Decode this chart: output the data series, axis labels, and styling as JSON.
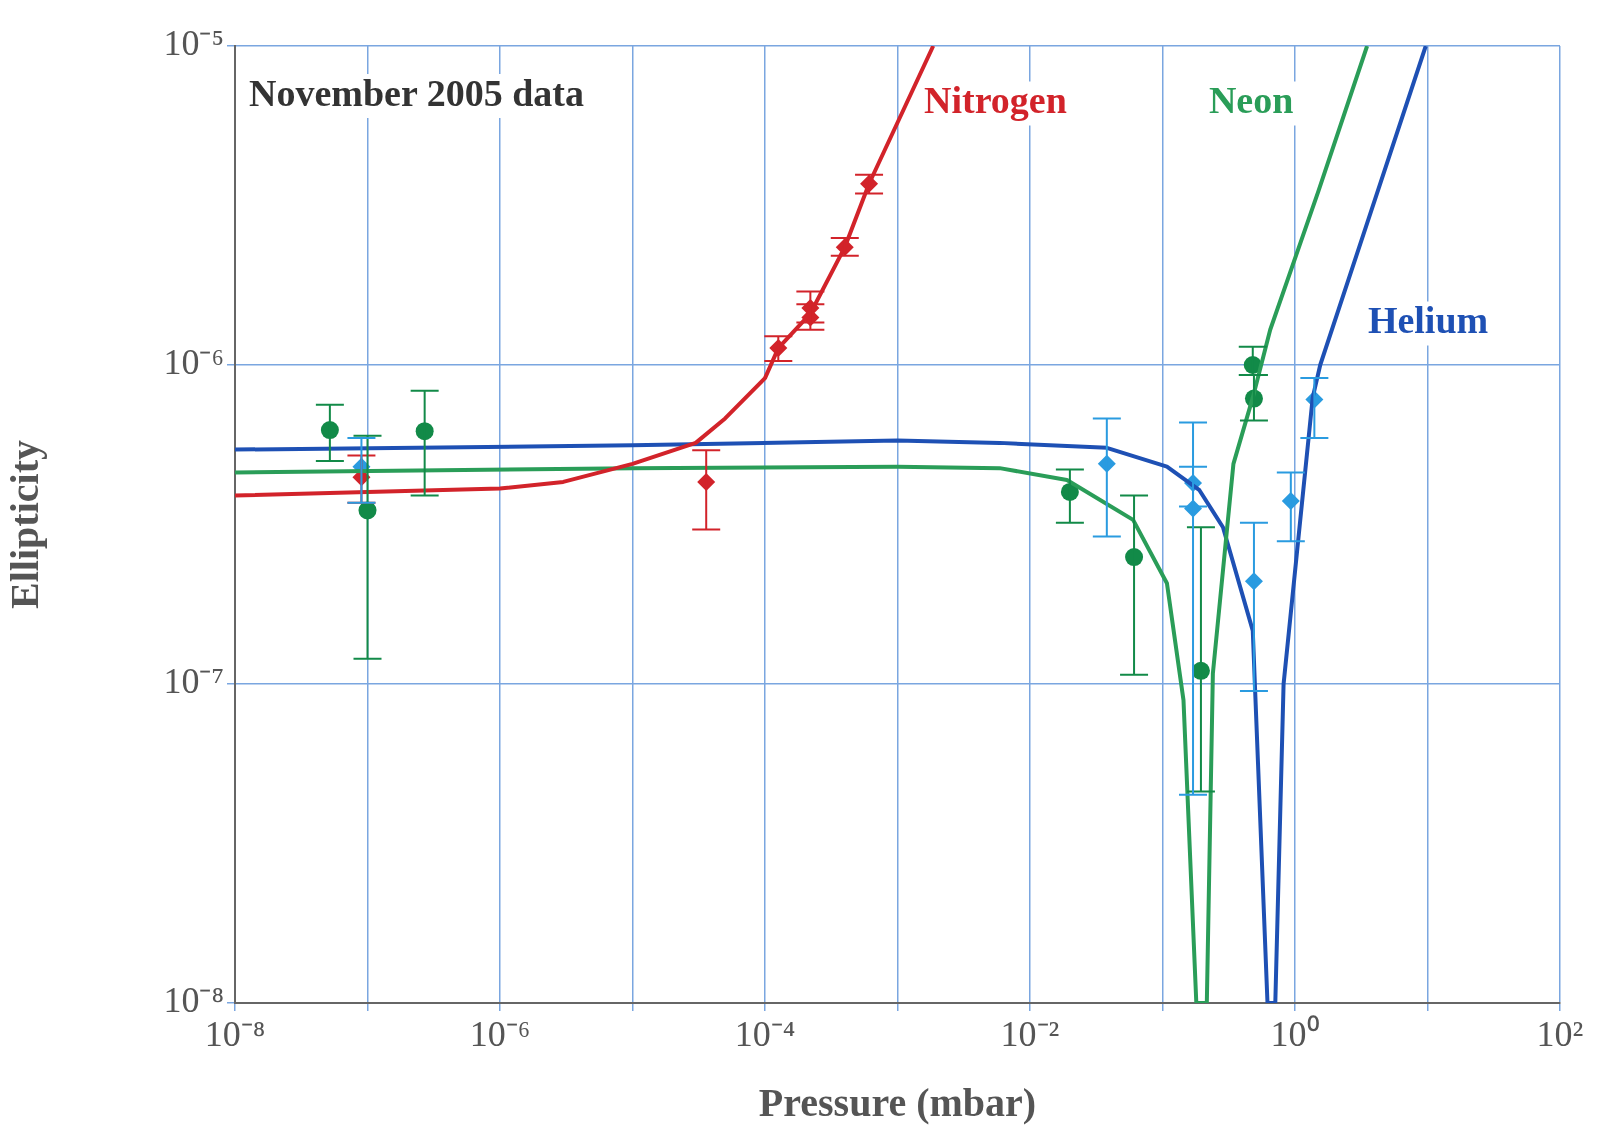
{
  "chart_data": {
    "type": "scatter",
    "xlabel": "Pressure (mbar)",
    "ylabel": "Ellipticity",
    "log": "xy",
    "grid": true,
    "legend": false,
    "annotations": [
      "November 2005 data"
    ],
    "xlim": [
      1e-08,
      100
    ],
    "ylim": [
      1e-08,
      1e-05
    ],
    "xticks": [
      {
        "value": 1e-08,
        "label": "10⁻⁸"
      },
      {
        "value": 1e-07,
        "label": null
      },
      {
        "value": 1e-06,
        "label": "10⁻⁶"
      },
      {
        "value": 1e-05,
        "label": null
      },
      {
        "value": 0.0001,
        "label": "10⁻⁴"
      },
      {
        "value": 0.001,
        "label": null
      },
      {
        "value": 0.01,
        "label": "10⁻²"
      },
      {
        "value": 0.1,
        "label": null
      },
      {
        "value": 1,
        "label": "10⁰"
      },
      {
        "value": 10,
        "label": null
      },
      {
        "value": 100,
        "label": "10²"
      }
    ],
    "yticks": [
      {
        "value": 1e-08,
        "label": "10⁻⁸"
      },
      {
        "value": 1e-07,
        "label": "10⁻⁷"
      },
      {
        "value": 1e-06,
        "label": "10⁻⁶"
      },
      {
        "value": 1e-05,
        "label": "10⁻⁵"
      }
    ],
    "series": [
      {
        "name": "Nitrogen",
        "type": "line",
        "color": "#d2232a",
        "marker": "none",
        "x": [
          1e-08,
          1e-06,
          3e-06,
          1e-05,
          3e-05,
          5e-05,
          0.0001,
          0.000126,
          0.00022,
          0.0004,
          0.00061,
          0.00186
        ],
        "values": [
          3.9e-07,
          4.1e-07,
          4.3e-07,
          4.9e-07,
          5.7e-07,
          6.8e-07,
          9.1e-07,
          1.13e-06,
          1.45e-06,
          2.34e-06,
          3.7e-06,
          1e-05
        ]
      },
      {
        "name": "Neon",
        "type": "line",
        "color": "#2a9d58",
        "marker": "none",
        "x": [
          1e-08,
          1e-05,
          0.001,
          0.0059,
          0.019,
          0.06,
          0.108,
          0.144,
          0.18,
          0.197,
          0.216,
          0.24,
          0.343,
          0.48,
          0.65,
          1.5,
          3.5
        ],
        "values": [
          4.6e-07,
          4.75e-07,
          4.8e-07,
          4.75e-07,
          4.36e-07,
          3.27e-07,
          2.07e-07,
          8.9e-08,
          1e-08,
          1e-08,
          1e-08,
          1.08e-07,
          4.9e-07,
          7.9e-07,
          1.29e-06,
          3.5e-06,
          1e-05
        ]
      },
      {
        "name": "Helium",
        "type": "line",
        "color": "#1e50b4",
        "marker": "none",
        "x": [
          1e-08,
          1e-05,
          0.001,
          0.0059,
          0.038,
          0.108,
          0.19,
          0.286,
          0.48,
          0.62,
          0.66,
          0.71,
          0.82,
          1.36,
          1.55,
          9.7
        ],
        "values": [
          5.43e-07,
          5.6e-07,
          5.8e-07,
          5.7e-07,
          5.5e-07,
          4.8e-07,
          4.05e-07,
          3.1e-07,
          1.47e-07,
          1e-08,
          1e-08,
          1e-08,
          1e-07,
          7.9e-07,
          1e-06,
          1e-05
        ]
      },
      {
        "type": "scatter",
        "color": "#d2232a",
        "marker": "diamond",
        "x": [
          9e-08,
          3.6e-05,
          0.000126,
          0.00022,
          0.00022,
          0.0004,
          0.00061
        ],
        "values": [
          4.45e-07,
          4.3e-07,
          1.13e-06,
          1.51e-06,
          1.41e-06,
          2.34e-06,
          3.7e-06
        ],
        "errors": [
          [
            3.7e-07,
            5.2e-07
          ],
          [
            3.05e-07,
            5.4e-07
          ],
          [
            1.03e-06,
            1.23e-06
          ],
          [
            1.36e-06,
            1.7e-06
          ],
          [
            1.29e-06,
            1.55e-06
          ],
          [
            2.2e-06,
            2.5e-06
          ],
          [
            3.45e-06,
            3.95e-06
          ]
        ]
      },
      {
        "type": "scatter",
        "color": "#128a48",
        "marker": "circle",
        "x": [
          5.2e-08,
          1e-07,
          2.7e-07,
          0.02,
          0.061,
          0.195,
          0.48,
          0.49
        ],
        "values": [
          6.25e-07,
          3.5e-07,
          6.2e-07,
          4e-07,
          2.5e-07,
          1.1e-07,
          1e-06,
          7.85e-07
        ],
        "errors": [
          [
            5e-07,
            7.5e-07
          ],
          [
            1.2e-07,
            6e-07
          ],
          [
            3.9e-07,
            8.3e-07
          ],
          [
            3.2e-07,
            4.7e-07
          ],
          [
            1.07e-07,
            3.9e-07
          ],
          [
            4.6e-08,
            3.1e-07
          ],
          [
            9.3e-07,
            1.14e-06
          ],
          [
            6.7e-07,
            9.3e-07
          ]
        ]
      },
      {
        "type": "scatter",
        "color": "#2a9be0",
        "marker": "diamond",
        "x": [
          9e-08,
          0.038,
          0.17,
          0.17,
          0.49,
          0.93,
          1.4
        ],
        "values": [
          4.8e-07,
          4.9e-07,
          4.27e-07,
          3.55e-07,
          2.1e-07,
          3.75e-07,
          7.8e-07
        ],
        "errors": [
          [
            3.7e-07,
            5.9e-07
          ],
          [
            2.9e-07,
            6.8e-07
          ],
          [
            3.6e-07,
            6.6e-07
          ],
          [
            4.5e-08,
            4.8e-07
          ],
          [
            9.5e-08,
            3.2e-07
          ],
          [
            2.8e-07,
            4.6e-07
          ],
          [
            5.9e-07,
            9.1e-07
          ]
        ]
      }
    ]
  }
}
